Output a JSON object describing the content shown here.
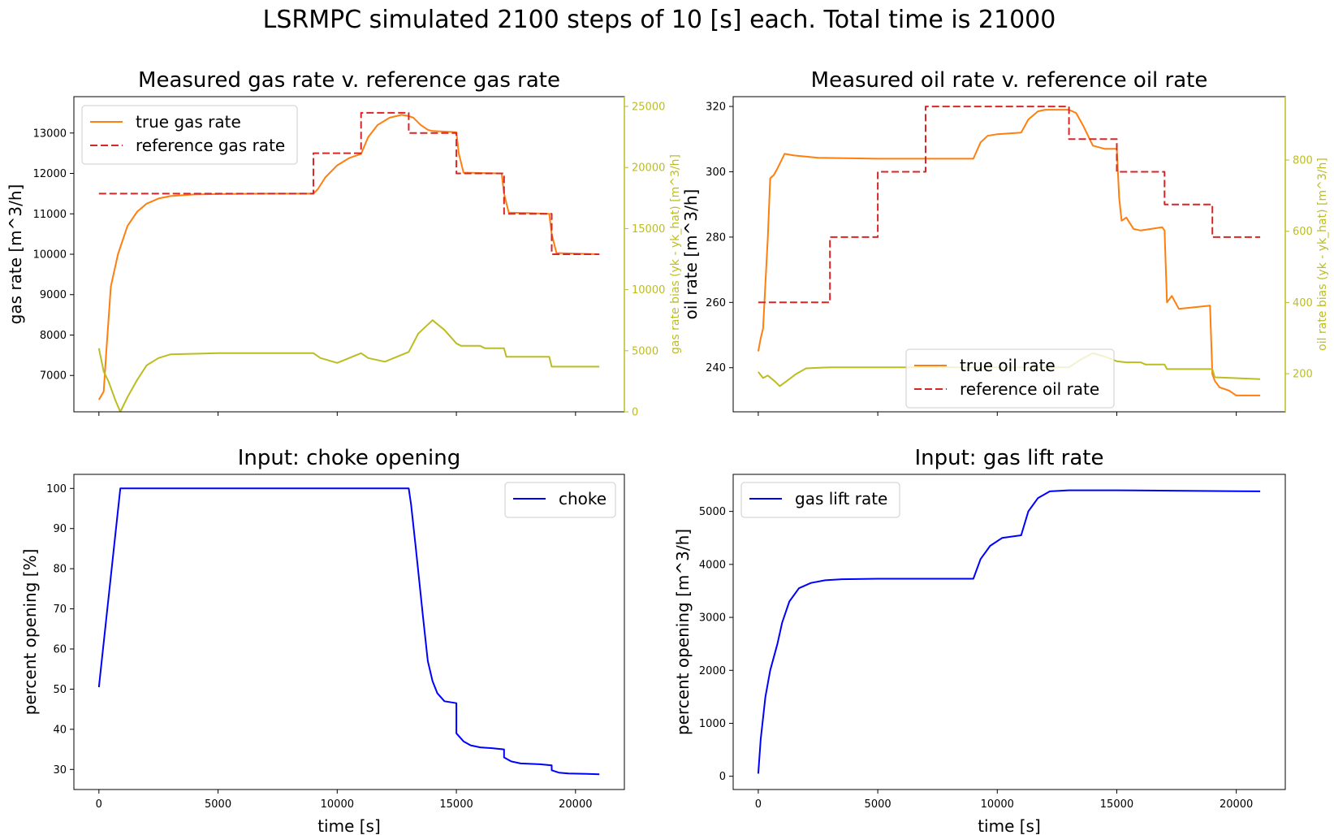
{
  "suptitle": "LSRMPC simulated 2100 steps of 10 [s] each. Total time is 21000",
  "colors": {
    "true_rate": "#ff7f0e",
    "reference": "#d62728",
    "bias": "#bcbd22",
    "input": "#0000ff"
  },
  "chart_data": [
    {
      "type": "line",
      "title": "Measured gas rate v. reference gas rate",
      "ylabel": "gas rate [m^3/h]",
      "y2label": "gas rate bias (yk - yk_hat) [m^3/h]",
      "xlim": [
        -1050,
        22050
      ],
      "ylim": [
        6100,
        13900
      ],
      "y2lim": [
        0,
        25800
      ],
      "xticks": [
        0,
        5000,
        10000,
        15000,
        20000
      ],
      "yticks": [
        7000,
        8000,
        9000,
        10000,
        11000,
        12000,
        13000
      ],
      "y2ticks": [
        0,
        5000,
        10000,
        15000,
        20000,
        25000
      ],
      "legend_position": "upper left",
      "series": [
        {
          "name": "true gas rate",
          "axis": "left",
          "style": "solid",
          "color": "#ff7f0e",
          "x": [
            0,
            200,
            300,
            500,
            800,
            1200,
            1600,
            2000,
            2500,
            3000,
            4000,
            5000,
            7000,
            9000,
            9200,
            9500,
            10000,
            10500,
            11000,
            11300,
            11700,
            12200,
            12700,
            13000,
            13200,
            13500,
            13800,
            14000,
            15000,
            15100,
            15300,
            16000,
            16900,
            17000,
            17200,
            18000,
            18900,
            19000,
            19200,
            21000
          ],
          "y": [
            6400,
            6600,
            7500,
            9200,
            10000,
            10700,
            11050,
            11250,
            11380,
            11440,
            11480,
            11490,
            11500,
            11500,
            11620,
            11900,
            12200,
            12380,
            12480,
            12900,
            13200,
            13380,
            13450,
            13420,
            13380,
            13200,
            13080,
            13050,
            13020,
            12500,
            12020,
            12010,
            12000,
            11500,
            11030,
            11020,
            11000,
            10500,
            10030,
            10000
          ]
        },
        {
          "name": "reference gas rate",
          "axis": "left",
          "style": "dashed",
          "color": "#d62728",
          "x": [
            0,
            9000,
            9000,
            11000,
            11000,
            13000,
            13000,
            15000,
            15000,
            17000,
            17000,
            19000,
            19000,
            21000
          ],
          "y": [
            11500,
            11500,
            12500,
            12500,
            13500,
            13500,
            13000,
            13000,
            12000,
            12000,
            11000,
            11000,
            10000,
            10000
          ]
        },
        {
          "name": "",
          "axis": "right",
          "style": "solid",
          "color": "#bcbd22",
          "x": [
            0,
            200,
            400,
            700,
            900,
            1200,
            1600,
            2000,
            2500,
            3000,
            5000,
            9000,
            9300,
            10000,
            11000,
            11300,
            12000,
            13000,
            13400,
            14000,
            14500,
            15000,
            15200,
            16000,
            16200,
            17000,
            17100,
            18900,
            19000,
            21000
          ],
          "y": [
            5200,
            3300,
            2500,
            900,
            0,
            1200,
            2600,
            3800,
            4400,
            4700,
            4800,
            4800,
            4400,
            4000,
            4800,
            4400,
            4100,
            4900,
            6400,
            7500,
            6700,
            5600,
            5400,
            5400,
            5200,
            5200,
            4500,
            4500,
            3700,
            3700
          ]
        }
      ]
    },
    {
      "type": "line",
      "title": "Measured oil rate v. reference oil rate",
      "ylabel": "oil rate [m^3/h]",
      "y2label": "oil rate bias (yk - yk_hat) [m^3/h]",
      "xlim": [
        -1050,
        22050
      ],
      "ylim": [
        226.5,
        323
      ],
      "y2lim": [
        93,
        978
      ],
      "xticks": [
        0,
        5000,
        10000,
        15000,
        20000
      ],
      "yticks": [
        240,
        260,
        280,
        300,
        320
      ],
      "y2ticks": [
        200,
        400,
        600,
        800
      ],
      "legend_position": "lower center",
      "series": [
        {
          "name": "true oil rate",
          "axis": "left",
          "style": "solid",
          "color": "#ff7f0e",
          "x": [
            0,
            100,
            200,
            400,
            500,
            650,
            800,
            1100,
            1500,
            2500,
            5000,
            9000,
            9300,
            9600,
            10000,
            11000,
            11300,
            11700,
            12000,
            13000,
            13300,
            13600,
            14000,
            14500,
            15000,
            15100,
            15200,
            15400,
            15700,
            16000,
            16900,
            17000,
            17100,
            17300,
            17600,
            18900,
            19000,
            19100,
            19300,
            19700,
            20000,
            21000
          ],
          "y": [
            245,
            249,
            252,
            280,
            298,
            299,
            301,
            305.5,
            305,
            304.3,
            304,
            304,
            309,
            311,
            311.5,
            312,
            316,
            318.5,
            319,
            319,
            318,
            314,
            308,
            307,
            307,
            292,
            285,
            286,
            282.5,
            282,
            283,
            282,
            260,
            262,
            258,
            259,
            238,
            236,
            234,
            233,
            231.5,
            231.5
          ]
        },
        {
          "name": "reference oil rate",
          "axis": "left",
          "style": "dashed",
          "color": "#d62728",
          "x": [
            0,
            3000,
            3000,
            5000,
            5000,
            7000,
            7000,
            13000,
            13000,
            15000,
            15000,
            17000,
            17000,
            19000,
            19000,
            21000
          ],
          "y": [
            260,
            260,
            280,
            280,
            300,
            300,
            320,
            320,
            310,
            310,
            300,
            300,
            290,
            290,
            280,
            280
          ]
        },
        {
          "name": "",
          "axis": "right",
          "style": "solid",
          "color": "#bcbd22",
          "x": [
            0,
            200,
            400,
            700,
            900,
            1200,
            1600,
            2000,
            3000,
            5000,
            13000,
            13500,
            14000,
            14500,
            15000,
            15400,
            16000,
            16200,
            17000,
            17100,
            19000,
            19100,
            21000
          ],
          "y": [
            205,
            188,
            195,
            178,
            165,
            180,
            200,
            215,
            218,
            218,
            218,
            240,
            258,
            248,
            235,
            232,
            232,
            226,
            226,
            213,
            213,
            190,
            185
          ]
        }
      ]
    },
    {
      "type": "line",
      "title": "Input: choke opening",
      "xlabel": "time [s]",
      "ylabel": "percent opening [%]",
      "xlim": [
        -1050,
        22050
      ],
      "ylim": [
        25,
        103.5
      ],
      "xticks": [
        0,
        5000,
        10000,
        15000,
        20000
      ],
      "yticks": [
        30,
        40,
        50,
        60,
        70,
        80,
        90,
        100
      ],
      "legend_position": "upper right",
      "series": [
        {
          "name": "choke",
          "style": "solid",
          "color": "#0000ff",
          "x": [
            0,
            900,
            13000,
            13100,
            13300,
            13600,
            13800,
            14000,
            14200,
            14500,
            15000,
            15000,
            15300,
            15600,
            16000,
            16500,
            17000,
            17000,
            17300,
            17700,
            18500,
            19000,
            19000,
            19300,
            19700,
            20500,
            21000
          ],
          "y": [
            50.5,
            100,
            100,
            96,
            85,
            68,
            57,
            52,
            49,
            47,
            46.5,
            39,
            37,
            36,
            35.5,
            35.3,
            35,
            33,
            32,
            31.5,
            31.3,
            31,
            29.8,
            29.2,
            29,
            28.9,
            28.8
          ]
        }
      ]
    },
    {
      "type": "line",
      "title": "Input: gas lift rate",
      "xlabel": "time [s]",
      "ylabel": "percent opening [m^3/h]",
      "xlim": [
        -1050,
        22050
      ],
      "ylim": [
        -250,
        5700
      ],
      "xticks": [
        0,
        5000,
        10000,
        15000,
        20000
      ],
      "yticks": [
        0,
        1000,
        2000,
        3000,
        4000,
        5000
      ],
      "legend_position": "upper left",
      "series": [
        {
          "name": "gas lift rate",
          "style": "solid",
          "color": "#0000ff",
          "x": [
            0,
            100,
            300,
            500,
            800,
            1000,
            1300,
            1700,
            2200,
            2800,
            3500,
            5000,
            9000,
            9300,
            9700,
            10200,
            11000,
            11300,
            11700,
            12200,
            13000,
            15000,
            21000
          ],
          "y": [
            50,
            700,
            1500,
            2000,
            2500,
            2900,
            3300,
            3550,
            3650,
            3700,
            3720,
            3730,
            3730,
            4100,
            4350,
            4500,
            4550,
            5000,
            5250,
            5380,
            5400,
            5400,
            5380
          ]
        }
      ]
    }
  ]
}
